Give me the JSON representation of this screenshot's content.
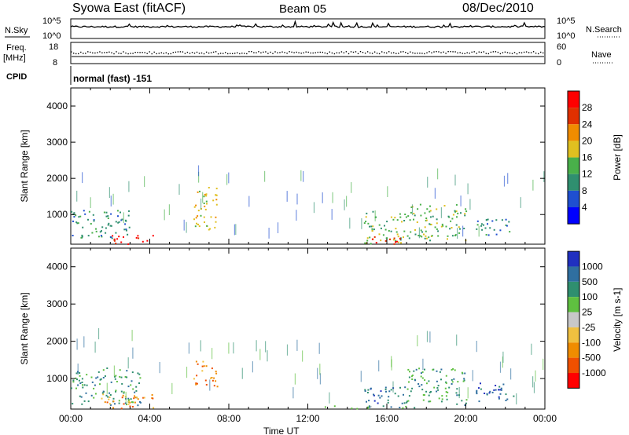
{
  "header": {
    "site": "Syowa East (fitACF)",
    "beam": "Beam 05",
    "date": "08/Dec/2010"
  },
  "status_panels": {
    "nsky_label": "N.Sky",
    "nsky_ticks": [
      "10^5",
      "10^0"
    ],
    "nsearch_label": "N.Search",
    "nsearch_ticks": [
      "10^5",
      "10^0"
    ],
    "freq_label": "Freq.",
    "freq_unit": "[MHz]",
    "freq_ticks": [
      "18",
      "8"
    ],
    "nave_label": "Nave",
    "nave_ticks": [
      "60",
      "0"
    ],
    "cpid_label": "CPID",
    "cpid_value": "normal (fast) -151"
  },
  "chart_data": [
    {
      "type": "heatmap",
      "quantity": "power",
      "ylabel": "Slant Range [km]",
      "ylim": [
        180,
        4500
      ],
      "y_ticks": [
        "1000",
        "2000",
        "3000",
        "4000"
      ],
      "colorbar_label": "Power [dB]",
      "colorbar_ticks": [
        "4",
        "8",
        "12",
        "16",
        "20",
        "24",
        "28"
      ],
      "colorbar_colors": [
        "#0000ff",
        "#1f4fd0",
        "#2f8f6f",
        "#49b04a",
        "#e0c020",
        "#f08c00",
        "#e03000",
        "#ff0000"
      ],
      "echo_regions": [
        {
          "t": [
            0.0,
            3.0
          ],
          "r": [
            350,
            1150
          ],
          "level": 2
        },
        {
          "t": [
            2.0,
            4.2
          ],
          "r": [
            200,
            450
          ],
          "level": 7
        },
        {
          "t": [
            6.2,
            7.4
          ],
          "r": [
            600,
            1800
          ],
          "level": 4
        },
        {
          "t": [
            14.8,
            17.2
          ],
          "r": [
            200,
            1100
          ],
          "level": 3
        },
        {
          "t": [
            15.0,
            16.8
          ],
          "r": [
            200,
            400
          ],
          "level": 6
        },
        {
          "t": [
            17.2,
            20.0
          ],
          "r": [
            300,
            1300
          ],
          "level": 3
        },
        {
          "t": [
            20.5,
            22.3
          ],
          "r": [
            400,
            900
          ],
          "level": 2
        }
      ]
    },
    {
      "type": "heatmap",
      "quantity": "velocity",
      "ylabel": "Slant Range [km]",
      "xlabel": "Time UT",
      "xlim": [
        0,
        24
      ],
      "x_ticks": [
        "00:00",
        "04:00",
        "08:00",
        "12:00",
        "16:00",
        "20:00",
        "00:00"
      ],
      "ylim": [
        180,
        4500
      ],
      "y_ticks": [
        "1000",
        "2000",
        "3000",
        "4000"
      ],
      "colorbar_label": "Velocity [m s-1]",
      "colorbar_ticks": [
        "1000",
        "500",
        "100",
        "25",
        "-25",
        "-100",
        "-500",
        "-1000"
      ],
      "colorbar_colors": [
        "#2030c0",
        "#2f6fa0",
        "#2f8f6f",
        "#5fc040",
        "#c8c8c8",
        "#f0c040",
        "#f08c00",
        "#f05000",
        "#ff0000"
      ],
      "echo_regions": [
        {
          "t": [
            0.0,
            3.5
          ],
          "r": [
            300,
            1300
          ],
          "level": 2
        },
        {
          "t": [
            1.5,
            4.2
          ],
          "r": [
            200,
            600
          ],
          "level": 6
        },
        {
          "t": [
            6.2,
            7.4
          ],
          "r": [
            800,
            1500
          ],
          "level": 6
        },
        {
          "t": [
            12.5,
            17.5
          ],
          "r": [
            200,
            280
          ],
          "level": 3
        },
        {
          "t": [
            14.8,
            17.0
          ],
          "r": [
            200,
            800
          ],
          "level": 1
        },
        {
          "t": [
            17.0,
            20.0
          ],
          "r": [
            300,
            1300
          ],
          "level": 2
        },
        {
          "t": [
            20.5,
            22.5
          ],
          "r": [
            400,
            900
          ],
          "level": 1
        }
      ]
    }
  ]
}
